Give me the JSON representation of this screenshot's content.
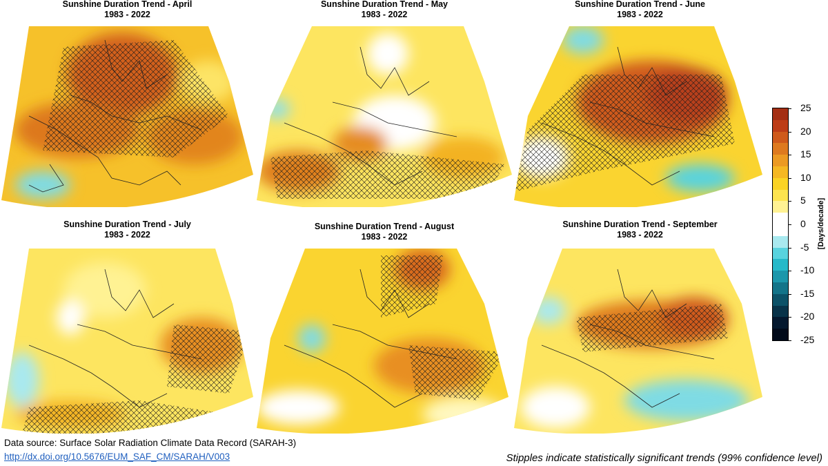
{
  "panels": [
    {
      "title": "Sunshine Duration Trend - April",
      "period": "1983 - 2022"
    },
    {
      "title": "Sunshine Duration Trend - May",
      "period": "1983 - 2022"
    },
    {
      "title": "Sunshine Duration Trend - June",
      "period": "1983 - 2022"
    },
    {
      "title": "Sunshine Duration Trend - July",
      "period": "1983 - 2022"
    },
    {
      "title": "Sunshine Duration Trend - August",
      "period": "1983 - 2022"
    },
    {
      "title": "Sunshine Duration Trend - September",
      "period": "1983 - 2022"
    }
  ],
  "colorbar": {
    "unit": "[Days/decade]",
    "ticks": [
      "25",
      "20",
      "15",
      "10",
      "5",
      "0",
      "-5",
      "-10",
      "-15",
      "-20",
      "-25"
    ],
    "colors": [
      "#a42f14",
      "#bd3d17",
      "#cf5a1b",
      "#de7a1f",
      "#ec9a23",
      "#f5b823",
      "#fad324",
      "#fde44f",
      "#fff293",
      "#ffffff",
      "#ffffff",
      "#a9e9ef",
      "#58d3de",
      "#26b9c9",
      "#1c97ab",
      "#137489",
      "#0c5268",
      "#083349",
      "#04182e",
      "#010a1a"
    ]
  },
  "source_text": "Data source: Surface Solar Radiation Climate Data Record (SARAH-3)",
  "source_link": "http://dx.doi.org/10.5676/EUM_SAF_CM/SARAH/V003",
  "note": "Stipples indicate statistically significant trends (99% confidence level)"
}
